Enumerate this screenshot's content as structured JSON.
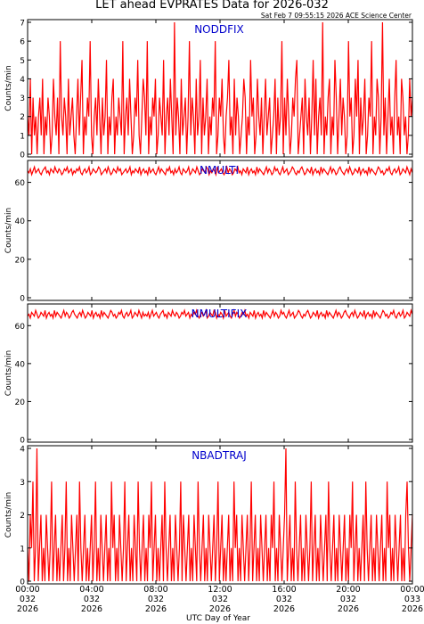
{
  "title": "LET ahead EVPRATES Data for 2026-032",
  "timestamp": "Sat Feb  7 09:55:15 2026 ACE Science Center",
  "xlabel": "UTC Day of Year",
  "ylabel": "Counts/min",
  "x_ticks": [
    [
      "00:00",
      "032",
      "2026"
    ],
    [
      "04:00",
      "032",
      "2026"
    ],
    [
      "08:00",
      "032",
      "2026"
    ],
    [
      "12:00",
      "032",
      "2026"
    ],
    [
      "16:00",
      "032",
      "2026"
    ],
    [
      "20:00",
      "032",
      "2026"
    ],
    [
      "00:00",
      "033",
      "2026"
    ]
  ],
  "colors": {
    "trace": "#ff0000",
    "label": "#0000cc",
    "axis": "#000000"
  },
  "chart_data": [
    {
      "type": "line",
      "label": "NODDFIX",
      "ylim": [
        0,
        7
      ],
      "yticks": [
        0,
        1,
        2,
        3,
        4,
        5,
        6,
        7
      ],
      "xlim_hours": [
        0,
        24
      ],
      "sample_every_min": 5,
      "values": [
        2,
        1,
        4,
        0,
        3,
        1,
        2,
        0,
        2,
        3,
        1,
        4,
        0,
        2,
        1,
        3,
        2,
        0,
        1,
        4,
        2,
        1,
        3,
        0,
        6,
        2,
        1,
        3,
        2,
        0,
        4,
        1,
        2,
        3,
        1,
        0,
        2,
        4,
        1,
        3,
        5,
        0,
        2,
        1,
        3,
        2,
        6,
        1,
        0,
        2,
        3,
        1,
        4,
        2,
        0,
        3,
        1,
        2,
        5,
        0,
        2,
        1,
        3,
        4,
        0,
        2,
        1,
        3,
        2,
        1,
        6,
        0,
        2,
        3,
        1,
        4,
        2,
        0,
        1,
        3,
        2,
        5,
        1,
        0,
        2,
        4,
        3,
        1,
        6,
        0,
        2,
        1,
        3,
        2,
        4,
        0,
        1,
        3,
        2,
        1,
        5,
        0,
        2,
        3,
        1,
        4,
        2,
        0,
        7,
        1,
        3,
        2,
        0,
        4,
        1,
        2,
        3,
        0,
        2,
        6,
        1,
        3,
        2,
        0,
        4,
        1,
        2,
        5,
        0,
        3,
        1,
        2,
        4,
        0,
        2,
        1,
        3,
        2,
        6,
        0,
        1,
        3,
        2,
        4,
        1,
        0,
        2,
        3,
        5,
        1,
        2,
        0,
        4,
        1,
        3,
        2,
        0,
        1,
        2,
        4,
        3,
        0,
        2,
        1,
        5,
        2,
        3,
        0,
        1,
        4,
        2,
        1,
        3,
        0,
        2,
        4,
        1,
        2,
        3,
        0,
        1,
        2,
        4,
        0,
        3,
        1,
        2,
        6,
        0,
        3,
        1,
        4,
        2,
        0,
        1,
        3,
        2,
        4,
        5,
        0,
        1,
        2,
        3,
        0,
        4,
        2,
        1,
        3,
        0,
        2,
        5,
        1,
        4,
        0,
        2,
        3,
        1,
        7,
        0,
        2,
        1,
        3,
        4,
        0,
        2,
        1,
        5,
        3,
        0,
        2,
        4,
        1,
        3,
        2,
        0,
        1,
        6,
        2,
        3,
        0,
        1,
        4,
        2,
        5,
        0,
        3,
        1,
        2,
        4,
        0,
        1,
        3,
        2,
        6,
        0,
        2,
        1,
        4,
        3,
        0,
        2,
        7,
        1,
        3,
        0,
        2,
        4,
        1,
        2,
        0,
        3,
        5,
        1,
        2,
        0,
        4,
        3,
        1,
        2,
        0,
        1,
        4,
        2,
        3
      ]
    },
    {
      "type": "line",
      "label": "NMULTI",
      "ylim": [
        0,
        70
      ],
      "yticks": [
        0,
        20,
        40,
        60
      ],
      "xlim_hours": [
        0,
        24
      ],
      "sample_every_min": 5,
      "values": [
        66,
        65,
        67,
        64,
        66,
        68,
        65,
        66,
        67,
        65,
        64,
        66,
        67,
        68,
        65,
        66,
        64,
        67,
        66,
        65,
        68,
        66,
        65,
        67,
        66,
        64,
        65,
        67,
        66,
        68,
        65,
        66,
        67,
        64,
        66,
        65,
        67,
        66,
        68,
        65,
        64,
        66,
        67,
        65,
        66,
        68,
        64,
        65,
        67,
        66,
        65,
        66,
        68,
        67,
        64,
        65,
        66,
        67,
        65,
        68,
        66,
        64,
        65,
        67,
        66,
        65,
        68,
        66,
        67,
        64,
        65,
        66,
        67,
        65,
        66,
        68,
        64,
        66,
        65,
        67,
        66,
        65,
        68,
        64,
        66,
        67,
        65,
        66,
        64,
        68,
        65,
        66,
        67,
        65,
        64,
        66,
        68,
        65,
        67,
        66,
        65,
        64,
        67,
        66,
        68,
        65,
        66,
        64,
        67,
        65,
        66,
        68,
        65,
        64,
        67,
        66,
        65,
        66,
        68,
        64,
        65,
        67,
        66,
        65,
        68,
        66,
        64,
        65,
        67,
        66,
        65,
        68,
        67,
        64,
        66,
        65,
        67,
        66,
        64,
        68,
        65,
        66,
        67,
        65,
        64,
        66,
        68,
        65,
        67,
        66,
        64,
        65,
        67,
        66,
        68,
        65,
        66,
        64,
        67,
        66,
        65,
        68,
        64,
        66,
        67,
        65,
        66,
        64,
        68,
        65,
        67,
        66,
        65,
        64,
        66,
        68,
        65,
        67,
        66,
        64,
        65,
        68,
        66,
        67,
        65,
        64,
        66,
        68,
        65,
        66,
        67,
        64,
        65,
        66,
        68,
        67,
        65,
        64,
        66,
        65,
        67,
        68,
        66,
        64,
        65,
        67,
        66,
        65,
        68,
        64,
        66,
        67,
        65,
        66,
        64,
        68,
        65,
        67,
        66,
        65,
        64,
        66,
        68,
        65,
        67,
        66,
        64,
        65,
        67,
        68,
        66,
        65,
        64,
        66,
        67,
        65,
        68,
        66,
        64,
        65,
        67,
        66,
        65,
        68,
        64,
        66,
        67,
        65,
        66,
        64,
        68,
        65,
        67,
        66,
        65,
        64,
        66,
        68,
        67,
        65,
        66,
        64,
        65,
        67,
        66,
        68,
        65,
        64,
        66,
        67,
        65,
        66,
        68,
        64,
        65,
        67,
        66,
        65,
        68,
        66,
        64,
        67,
        65
      ]
    },
    {
      "type": "line",
      "label": "NMULTIFIX",
      "ylim": [
        0,
        70
      ],
      "yticks": [
        0,
        20,
        40,
        60
      ],
      "xlim_hours": [
        0,
        24
      ],
      "sample_every_min": 5,
      "values": [
        65,
        66,
        64,
        67,
        66,
        65,
        68,
        66,
        64,
        65,
        67,
        66,
        65,
        68,
        64,
        66,
        67,
        65,
        66,
        64,
        68,
        65,
        67,
        66,
        65,
        64,
        66,
        68,
        65,
        67,
        66,
        64,
        65,
        67,
        68,
        66,
        65,
        64,
        66,
        67,
        65,
        68,
        66,
        64,
        65,
        67,
        66,
        65,
        68,
        64,
        66,
        67,
        65,
        66,
        64,
        68,
        65,
        67,
        66,
        65,
        64,
        66,
        68,
        67,
        65,
        66,
        64,
        65,
        67,
        66,
        68,
        65,
        64,
        66,
        67,
        65,
        66,
        68,
        64,
        65,
        67,
        66,
        65,
        68,
        66,
        64,
        67,
        65,
        66,
        65,
        67,
        64,
        66,
        68,
        65,
        66,
        67,
        65,
        64,
        66,
        67,
        68,
        65,
        66,
        64,
        67,
        66,
        65,
        68,
        66,
        65,
        67,
        66,
        64,
        65,
        67,
        66,
        68,
        65,
        66,
        67,
        64,
        66,
        65,
        67,
        66,
        68,
        65,
        64,
        66,
        67,
        65,
        66,
        68,
        64,
        65,
        67,
        66,
        65,
        68,
        67,
        64,
        66,
        65,
        67,
        66,
        64,
        68,
        65,
        66,
        67,
        65,
        64,
        66,
        68,
        65,
        67,
        66,
        64,
        65,
        67,
        66,
        68,
        65,
        66,
        64,
        67,
        66,
        65,
        68,
        64,
        66,
        67,
        65,
        66,
        64,
        68,
        65,
        67,
        66,
        65,
        64,
        66,
        68,
        65,
        67,
        66,
        64,
        65,
        68,
        66,
        67,
        65,
        64,
        66,
        68,
        65,
        66,
        67,
        64,
        65,
        66,
        68,
        67,
        65,
        64,
        66,
        65,
        67,
        68,
        66,
        64,
        65,
        67,
        66,
        65,
        68,
        64,
        66,
        67,
        65,
        66,
        64,
        68,
        65,
        67,
        66,
        65,
        64,
        66,
        68,
        65,
        67,
        66,
        64,
        65,
        67,
        68,
        66,
        65,
        64,
        66,
        67,
        65,
        68,
        66,
        64,
        65,
        67,
        66,
        65,
        68,
        64,
        66,
        67,
        65,
        66,
        64,
        68,
        65,
        67,
        66,
        65,
        64,
        66,
        68,
        67,
        65,
        66,
        64,
        65,
        67,
        66,
        68,
        65,
        64,
        66,
        67,
        65,
        66,
        68,
        64,
        65,
        67,
        66,
        65,
        68,
        66
      ]
    },
    {
      "type": "line",
      "label": "NBADTRAJ",
      "ylim": [
        0,
        4
      ],
      "yticks": [
        0,
        1,
        2,
        3,
        4
      ],
      "xlim_hours": [
        0,
        24
      ],
      "sample_every_min": 5,
      "values": [
        1,
        0,
        2,
        1,
        3,
        0,
        1,
        4,
        0,
        1,
        2,
        0,
        1,
        0,
        2,
        1,
        0,
        1,
        3,
        0,
        1,
        2,
        0,
        1,
        0,
        1,
        2,
        0,
        1,
        3,
        0,
        1,
        0,
        2,
        1,
        0,
        1,
        2,
        0,
        3,
        1,
        0,
        1,
        2,
        0,
        1,
        0,
        1,
        2,
        0,
        1,
        3,
        0,
        1,
        0,
        2,
        1,
        0,
        1,
        2,
        0,
        1,
        0,
        3,
        1,
        2,
        0,
        1,
        0,
        2,
        1,
        0,
        1,
        3,
        0,
        1,
        2,
        0,
        1,
        0,
        2,
        1,
        0,
        3,
        1,
        0,
        1,
        2,
        0,
        1,
        0,
        2,
        1,
        3,
        0,
        1,
        2,
        0,
        1,
        0,
        1,
        2,
        0,
        3,
        1,
        0,
        1,
        2,
        0,
        1,
        0,
        2,
        1,
        0,
        1,
        3,
        0,
        2,
        1,
        0,
        1,
        2,
        0,
        1,
        0,
        2,
        1,
        0,
        3,
        1,
        0,
        1,
        2,
        0,
        1,
        0,
        2,
        1,
        0,
        1,
        2,
        0,
        1,
        3,
        0,
        1,
        2,
        0,
        1,
        0,
        1,
        2,
        0,
        1,
        0,
        3,
        1,
        2,
        0,
        1,
        0,
        2,
        1,
        0,
        1,
        2,
        0,
        1,
        3,
        0,
        1,
        2,
        0,
        1,
        0,
        2,
        1,
        0,
        1,
        2,
        0,
        1,
        0,
        2,
        1,
        3,
        0,
        1,
        0,
        2,
        1,
        0,
        1,
        2,
        4,
        0,
        1,
        2,
        0,
        1,
        0,
        3,
        1,
        0,
        1,
        2,
        0,
        1,
        0,
        2,
        1,
        0,
        1,
        3,
        0,
        1,
        2,
        0,
        1,
        0,
        2,
        1,
        0,
        1,
        2,
        0,
        3,
        1,
        0,
        1,
        2,
        0,
        1,
        0,
        2,
        1,
        0,
        1,
        2,
        0,
        1,
        0,
        2,
        1,
        3,
        0,
        1,
        2,
        0,
        1,
        0,
        1,
        2,
        0,
        3,
        1,
        0,
        1,
        2,
        0,
        1,
        0,
        2,
        1,
        0,
        1,
        2,
        0,
        1,
        0,
        3,
        1,
        2,
        0,
        1,
        0,
        2,
        1,
        0,
        1,
        2,
        0,
        1,
        0,
        2,
        3,
        1,
        0,
        1,
        2
      ]
    }
  ]
}
